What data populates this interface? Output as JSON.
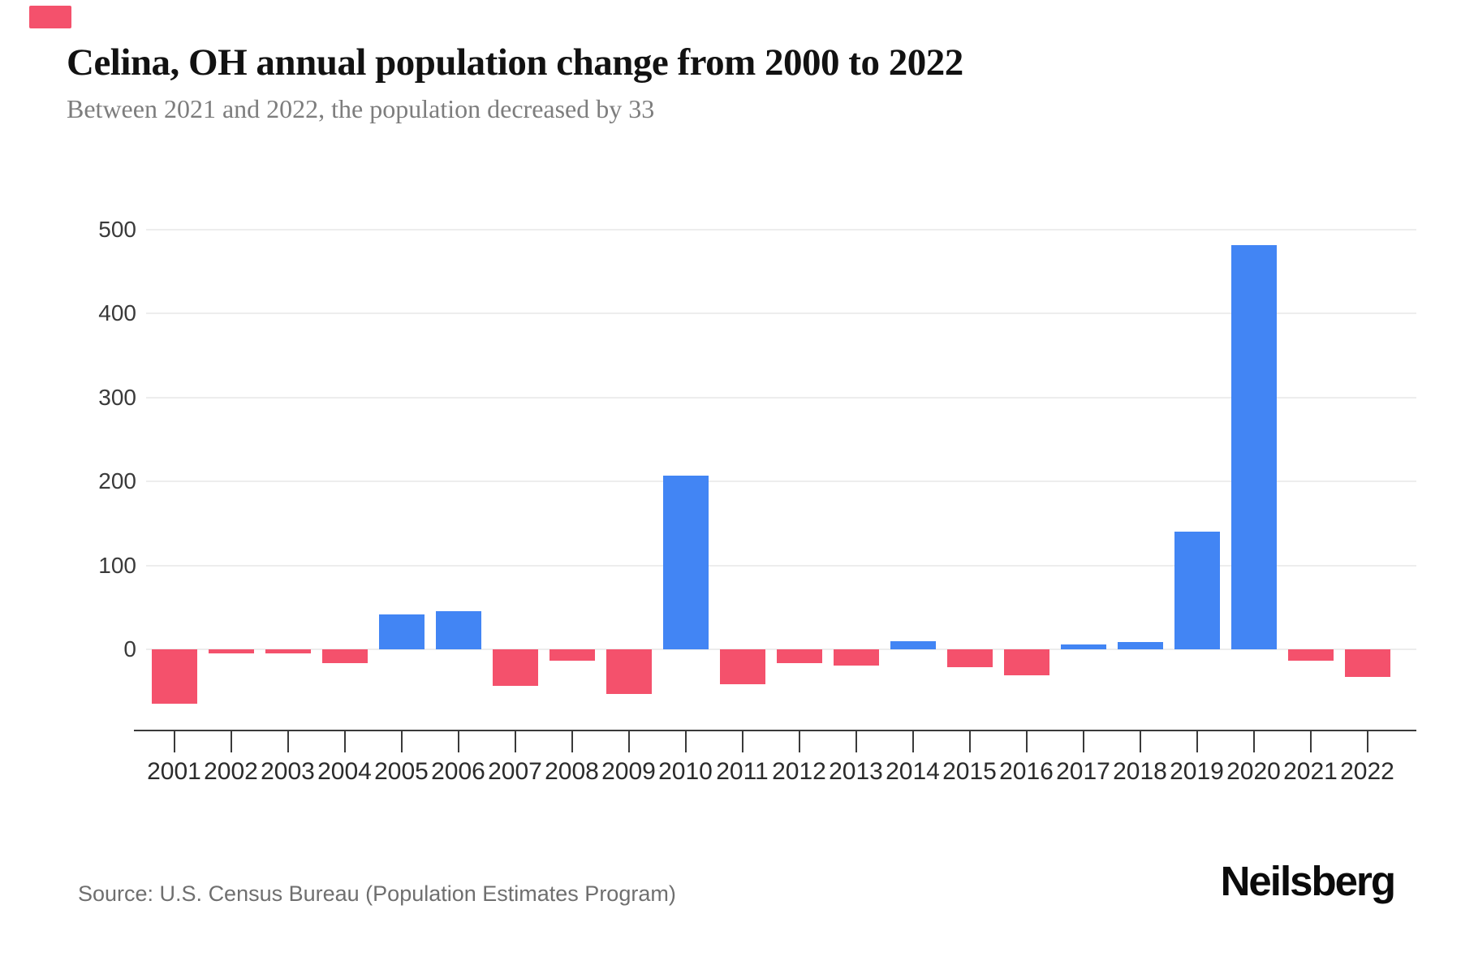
{
  "header": {
    "title": "Celina, OH annual population change from 2000 to 2022",
    "subtitle": "Between 2021 and 2022, the population decreased by 33"
  },
  "footer": {
    "source": "Source: U.S. Census Bureau (Population Estimates Program)",
    "brand": "Neilsberg"
  },
  "chart_data": {
    "type": "bar",
    "title": "Celina, OH annual population change from 2000 to 2022",
    "subtitle": "Between 2021 and 2022, the population decreased by 33",
    "series_name": "Annual population change",
    "categories": [
      "2001",
      "2002",
      "2003",
      "2004",
      "2005",
      "2006",
      "2007",
      "2008",
      "2009",
      "2010",
      "2011",
      "2012",
      "2013",
      "2014",
      "2015",
      "2016",
      "2017",
      "2018",
      "2019",
      "2020",
      "2021",
      "2022"
    ],
    "values": [
      -65,
      -5,
      -5,
      -16,
      42,
      45,
      -43,
      -14,
      -53,
      207,
      -42,
      -16,
      -19,
      10,
      -21,
      -31,
      6,
      9,
      140,
      481,
      -14,
      -33
    ],
    "colors": {
      "positive": "#4285f4",
      "negative": "#f4516c"
    },
    "accent_color": "#f4516c",
    "y_axis": {
      "ticks": [
        0,
        100,
        200,
        300,
        400,
        500
      ],
      "max": 500,
      "grid": true,
      "label_side": "left"
    },
    "x_axis": {
      "tick_marks": true,
      "line": true
    },
    "legend": "none"
  }
}
